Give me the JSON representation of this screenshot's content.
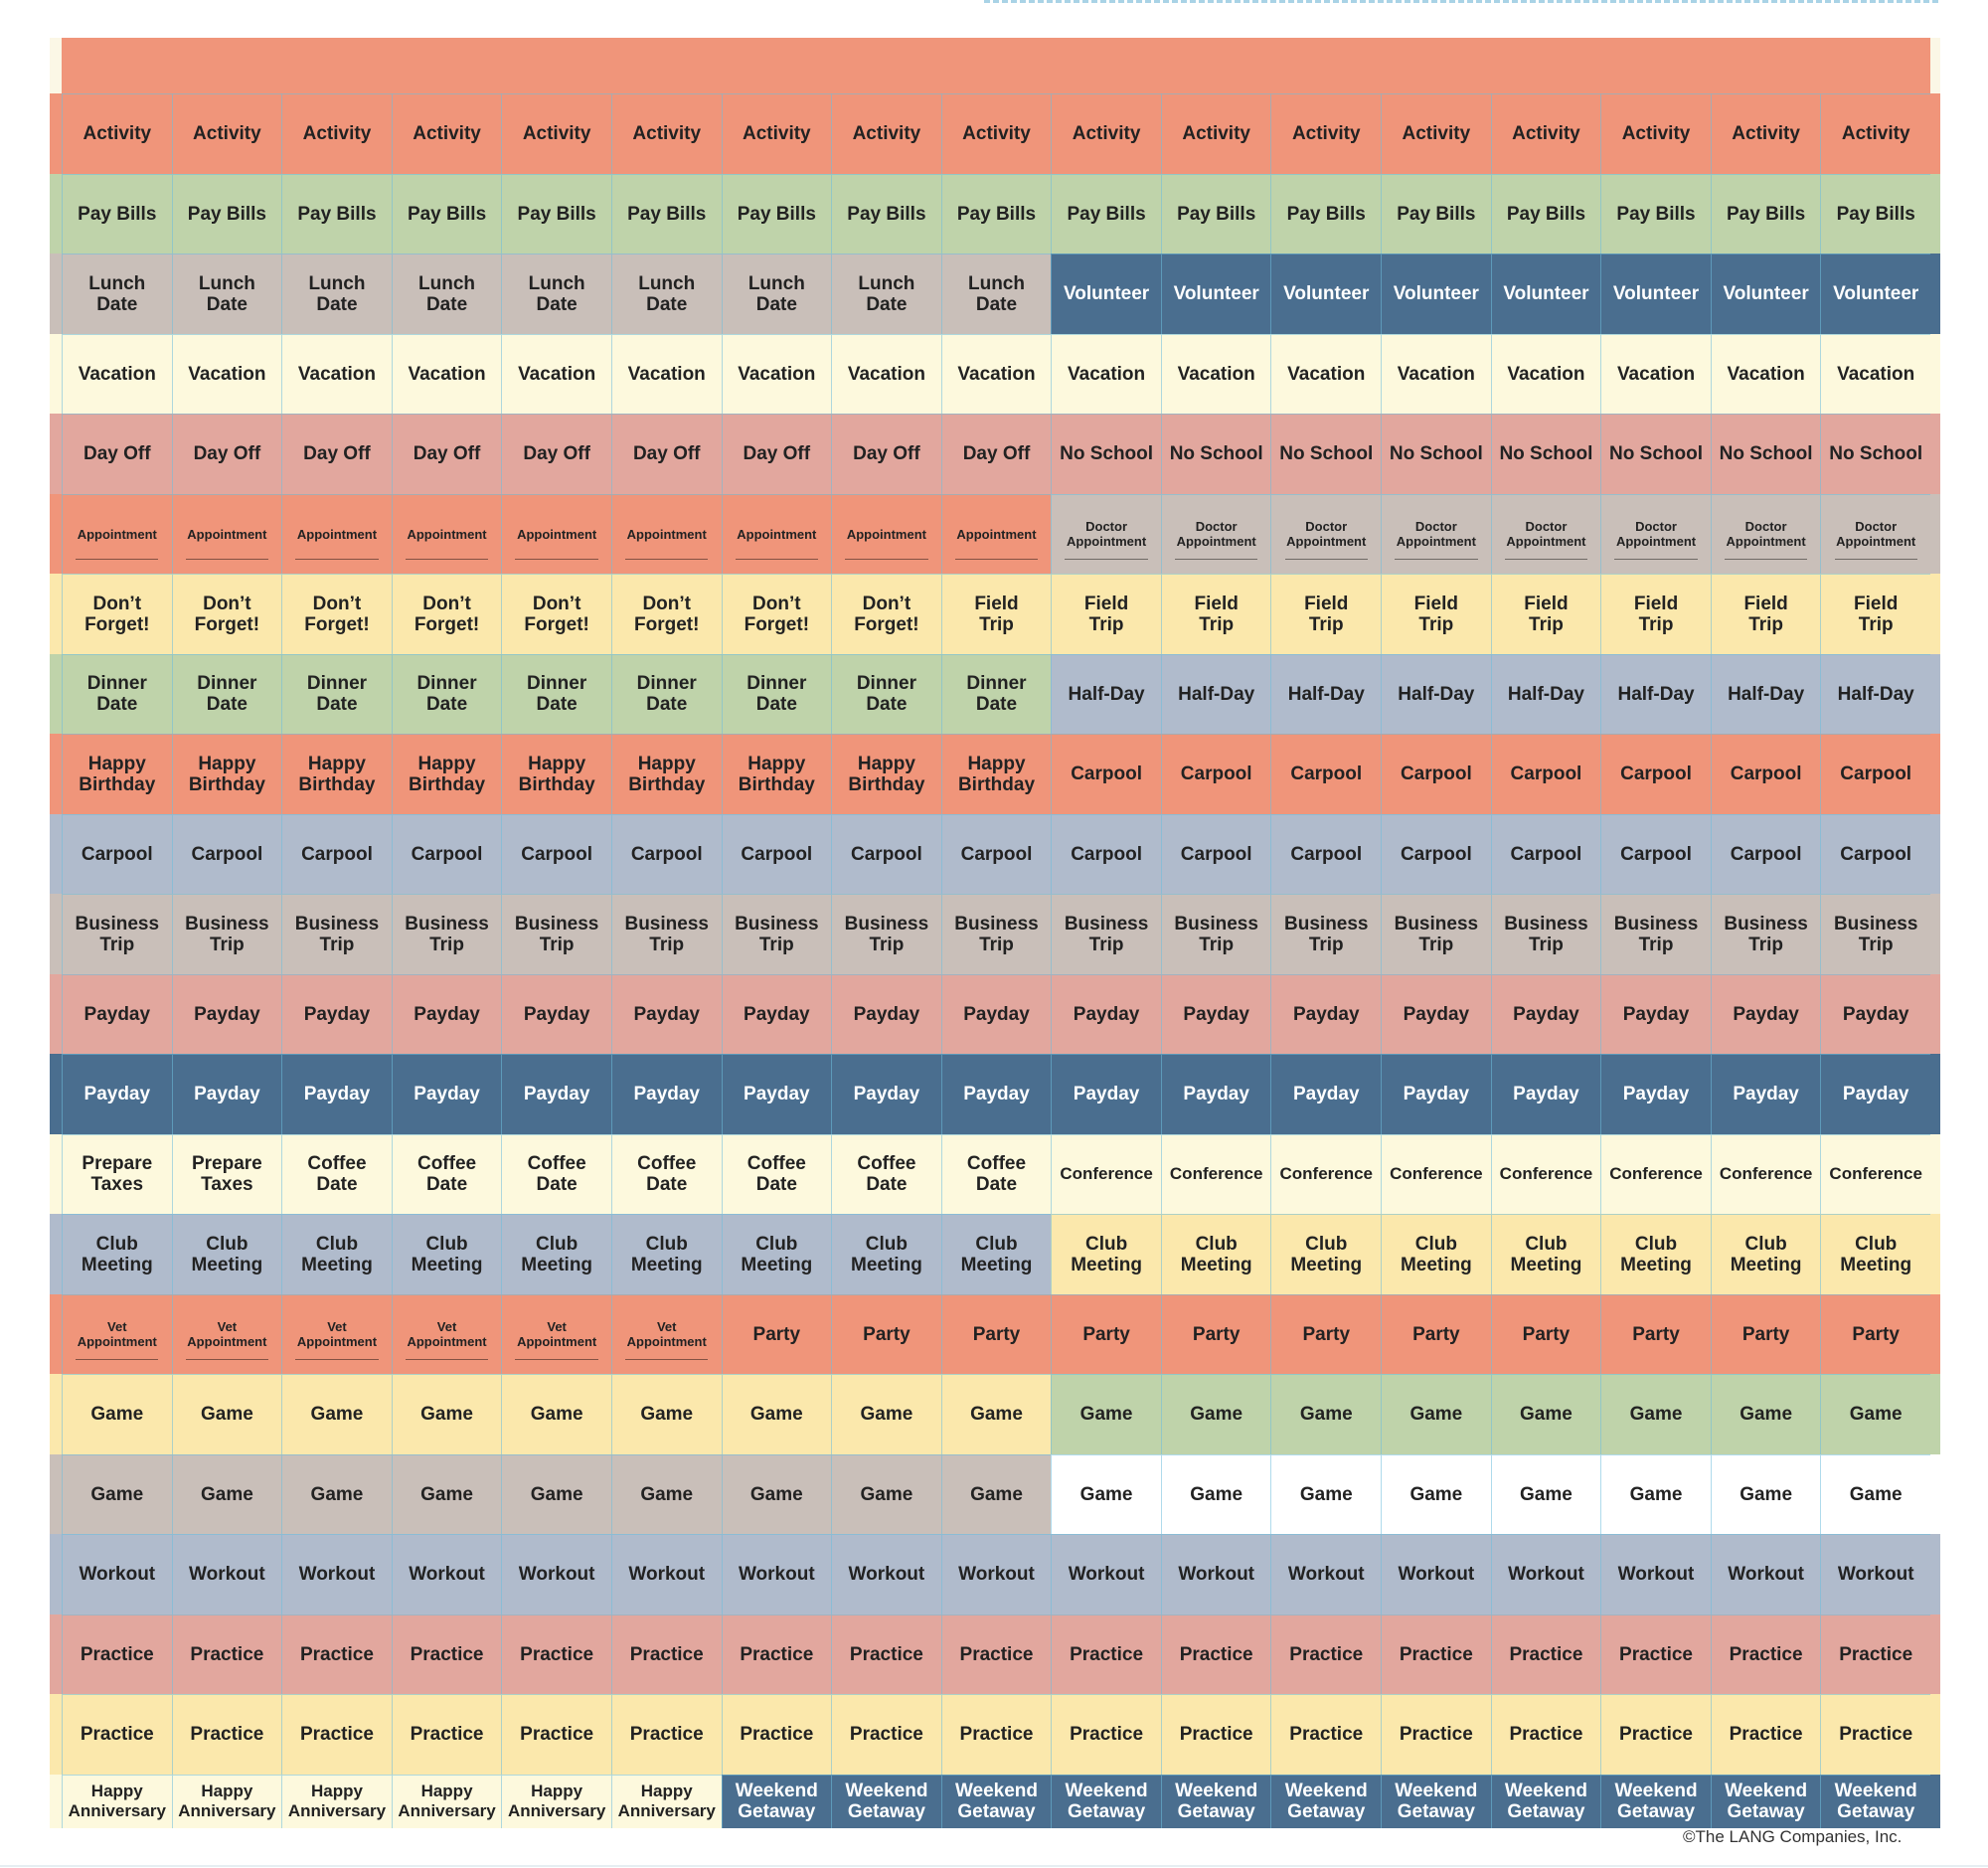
{
  "colors": {
    "salmon": "#f0957a",
    "green": "#bfd3aa",
    "taupe": "#c9bfb9",
    "navy": "#4a6e8f",
    "cream": "#fdf9dd",
    "rose": "#e2a79e",
    "yellow": "#fbe8ac",
    "periwinkle": "#b0bbcc",
    "white": "#ffffff",
    "text_dark": "#222222",
    "text_light": "#ffffff",
    "grid_line": "#8fcde4"
  },
  "rows": [
    {
      "segments": [
        {
          "text": "Activity",
          "count": 17,
          "color": "salmon"
        }
      ]
    },
    {
      "segments": [
        {
          "text": "Pay Bills",
          "count": 17,
          "color": "green"
        }
      ]
    },
    {
      "segments": [
        {
          "text": "Lunch\nDate",
          "count": 9,
          "color": "taupe"
        },
        {
          "text": "Volunteer",
          "count": 8,
          "color": "navy"
        }
      ]
    },
    {
      "segments": [
        {
          "text": "Vacation",
          "count": 17,
          "color": "cream"
        }
      ]
    },
    {
      "segments": [
        {
          "text": "Day Off",
          "count": 9,
          "color": "rose"
        },
        {
          "text": "No School",
          "count": 8,
          "color": "rose"
        }
      ]
    },
    {
      "segments": [
        {
          "text": "Appointment",
          "count": 9,
          "color": "salmon",
          "small": true,
          "line": true
        },
        {
          "text": "Doctor\nAppointment",
          "count": 8,
          "color": "taupe",
          "small": true,
          "line": true
        }
      ]
    },
    {
      "segments": [
        {
          "text": "Don’t\nForget!",
          "count": 8,
          "color": "yellow"
        },
        {
          "text": "Field\nTrip",
          "count": 9,
          "color": "yellow"
        }
      ]
    },
    {
      "segments": [
        {
          "text": "Dinner\nDate",
          "count": 9,
          "color": "green"
        },
        {
          "text": "Half-Day",
          "count": 8,
          "color": "periwinkle"
        }
      ]
    },
    {
      "segments": [
        {
          "text": "Happy\nBirthday",
          "count": 9,
          "color": "salmon"
        },
        {
          "text": "Carpool",
          "count": 8,
          "color": "salmon"
        }
      ]
    },
    {
      "segments": [
        {
          "text": "Carpool",
          "count": 17,
          "color": "periwinkle"
        }
      ]
    },
    {
      "segments": [
        {
          "text": "Business\nTrip",
          "count": 17,
          "color": "taupe"
        }
      ]
    },
    {
      "segments": [
        {
          "text": "Payday",
          "count": 17,
          "color": "rose"
        }
      ]
    },
    {
      "segments": [
        {
          "text": "Payday",
          "count": 17,
          "color": "navy"
        }
      ]
    },
    {
      "segments": [
        {
          "text": "Prepare\nTaxes",
          "count": 2,
          "color": "cream"
        },
        {
          "text": "Coffee\nDate",
          "count": 7,
          "color": "cream"
        },
        {
          "text": "Conference",
          "count": 8,
          "color": "cream",
          "medium": true
        }
      ]
    },
    {
      "segments": [
        {
          "text": "Club\nMeeting",
          "count": 9,
          "color": "periwinkle"
        },
        {
          "text": "Club\nMeeting",
          "count": 8,
          "color": "yellow"
        }
      ]
    },
    {
      "segments": [
        {
          "text": "Vet\nAppointment",
          "count": 6,
          "color": "salmon",
          "small": true,
          "line": true
        },
        {
          "text": "Party",
          "count": 11,
          "color": "salmon"
        }
      ]
    },
    {
      "segments": [
        {
          "text": "Game",
          "count": 9,
          "color": "yellow"
        },
        {
          "text": "Game",
          "count": 8,
          "color": "green"
        }
      ]
    },
    {
      "segments": [
        {
          "text": "Game",
          "count": 9,
          "color": "taupe"
        },
        {
          "text": "Game",
          "count": 8,
          "color": "white"
        }
      ]
    },
    {
      "segments": [
        {
          "text": "Workout",
          "count": 17,
          "color": "periwinkle"
        }
      ]
    },
    {
      "segments": [
        {
          "text": "Practice",
          "count": 17,
          "color": "rose"
        }
      ]
    },
    {
      "segments": [
        {
          "text": "Practice",
          "count": 17,
          "color": "yellow"
        }
      ]
    },
    {
      "segments": [
        {
          "text": "Happy\nAnniversary",
          "count": 6,
          "color": "cream",
          "medium": true
        },
        {
          "text": "Weekend\nGetaway",
          "count": 11,
          "color": "navy"
        }
      ]
    }
  ],
  "footer": {
    "copyright": "©The LANG Companies, Inc."
  }
}
